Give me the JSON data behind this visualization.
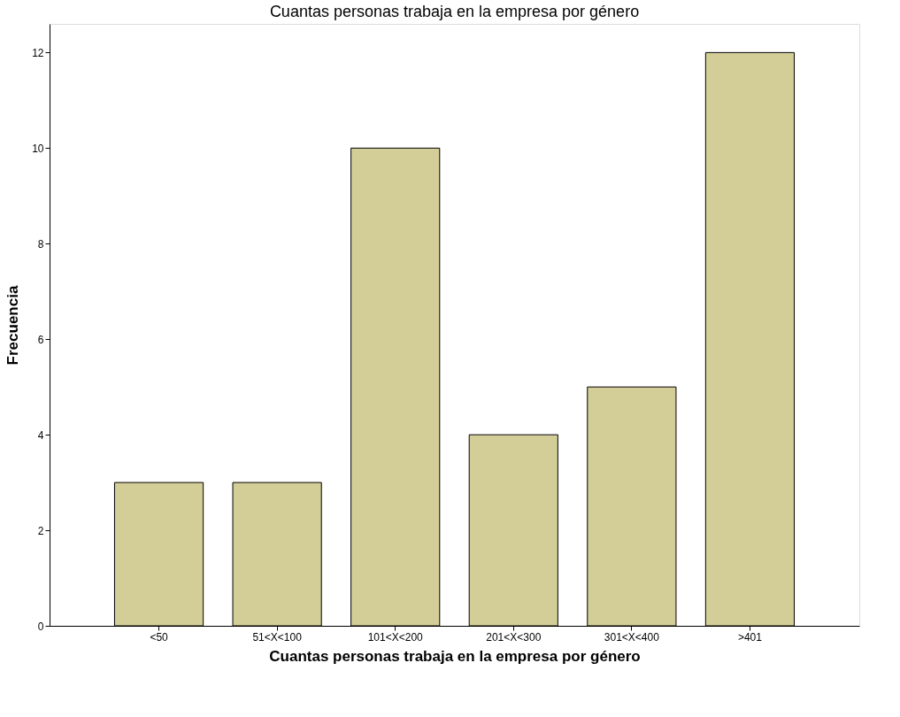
{
  "chart_data": {
    "type": "bar",
    "title": "Cuantas personas trabaja en la empresa por género",
    "xlabel": "Cuantas personas trabaja en la empresa por género",
    "ylabel": "Frecuencia",
    "categories": [
      "<50",
      "51<X<100",
      "101<X<200",
      "201<X<300",
      "301<X<400",
      ">401"
    ],
    "values": [
      3,
      3,
      10,
      4,
      5,
      12
    ],
    "color": "#d3ce97",
    "ylim": [
      0,
      12.6
    ],
    "yticks": [
      0,
      2,
      4,
      6,
      8,
      10,
      12
    ],
    "grid": false
  }
}
